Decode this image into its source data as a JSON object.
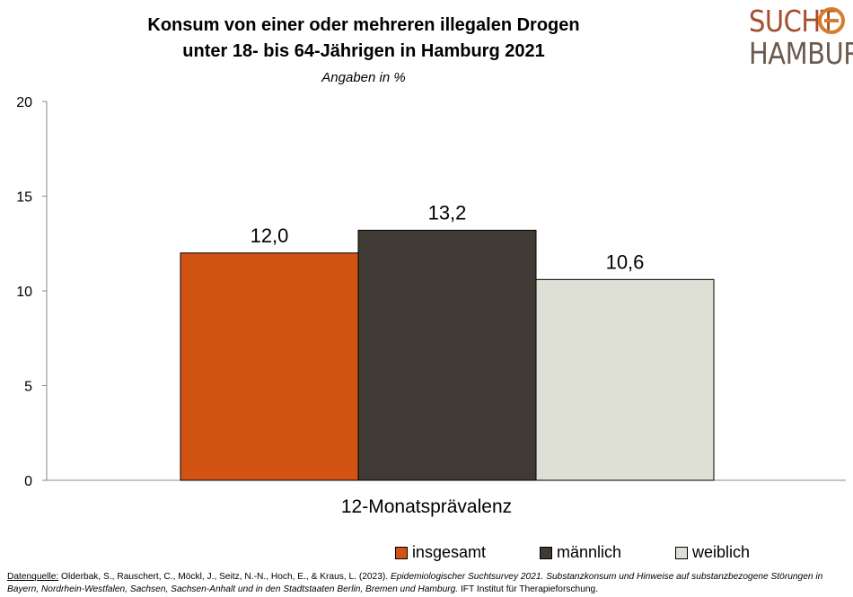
{
  "title_line1": "Konsum von einer oder mehreren illegalen Drogen",
  "title_line2": "unter 18- bis 64-Jährigen in Hamburg 2021",
  "subtitle": "Angaben in %",
  "logo": {
    "line1": "SUCHT",
    "line2": "HAMBURG"
  },
  "chart_data": {
    "type": "bar",
    "categories": [
      "12-Monatsprävalenz"
    ],
    "series": [
      {
        "name": "insgesamt",
        "values": [
          12.0
        ],
        "label": "12,0",
        "color": "#d35313"
      },
      {
        "name": "männlich",
        "values": [
          13.2
        ],
        "label": "13,2",
        "color": "#3f3a34"
      },
      {
        "name": "weiblich",
        "values": [
          10.6
        ],
        "label": "10,6",
        "color": "#dedfd5"
      }
    ],
    "ylim": [
      0,
      20
    ],
    "yticks": [
      "0",
      "5",
      "10",
      "15",
      "20"
    ],
    "grid": false,
    "legend": "bottom"
  },
  "source": {
    "label": "Datenquelle:",
    "authors": " Olderbak, S., Rauschert, C., Möckl, J., Seitz, N.-N., Hoch, E., & Kraus, L. (2023). ",
    "title": "Epidemiologischer Suchtsurvey 2021. Substanzkonsum und Hinweise auf substanzbezogene Störungen in Bayern, Nordrhein-Westfalen, Sachsen, Sachsen-Anhalt und in den Stadtstaaten Berlin, Bremen und Hamburg.",
    "publisher": " IFT Institut für Therapieforschung."
  }
}
